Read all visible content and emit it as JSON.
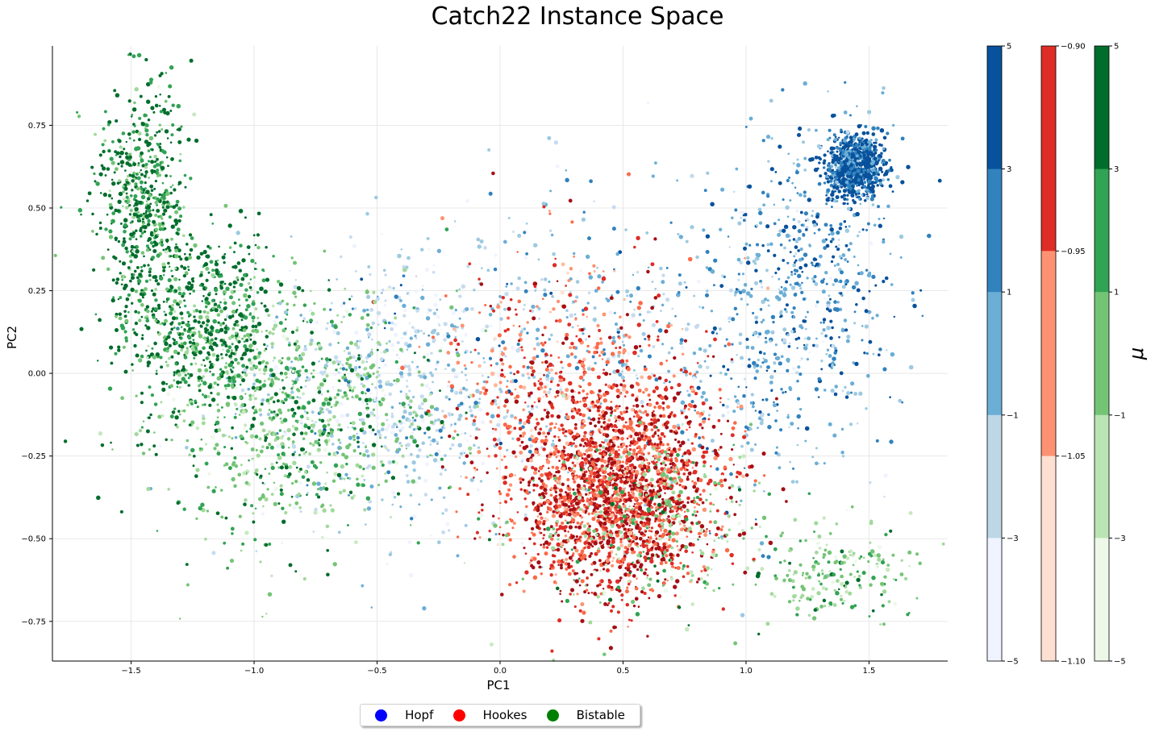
{
  "chart_data": {
    "type": "scatter",
    "title": "Catch22 Instance Space",
    "xlabel": "PC1",
    "ylabel": "PC2",
    "xlim": [
      -1.82,
      1.82
    ],
    "ylim": [
      -0.87,
      0.99
    ],
    "xticks": [
      -1.5,
      -1.0,
      -0.5,
      0.0,
      0.5,
      1.0,
      1.5
    ],
    "xtick_labels": [
      "−1.5",
      "−1.0",
      "−0.5",
      "0.0",
      "0.5",
      "1.0",
      "1.5"
    ],
    "yticks": [
      0.75,
      0.5,
      0.25,
      0.0,
      -0.25,
      -0.5,
      -0.75
    ],
    "ytick_labels": [
      "0.75",
      "0.50",
      "0.25",
      "0.00",
      "−0.25",
      "−0.50",
      "−0.75"
    ],
    "grid": true,
    "legend_position": "bottom-center",
    "series": [
      {
        "name": "Hopf",
        "legend_color": "#0000ff",
        "colormap": "Blues",
        "clusters": [
          {
            "center": [
              1.45,
              0.63
            ],
            "spread": [
              0.06,
              0.05
            ],
            "level": 0.9,
            "share": 0.3
          },
          {
            "center": [
              1.3,
              0.35
            ],
            "spread": [
              0.17,
              0.2
            ],
            "level": 0.7,
            "share": 0.14
          },
          {
            "center": [
              1.12,
              0.05
            ],
            "spread": [
              0.25,
              0.26
            ],
            "level": 0.6,
            "share": 0.12
          },
          {
            "center": [
              -0.45,
              -0.05
            ],
            "spread": [
              0.3,
              0.2
            ],
            "level": 0.3,
            "share": 0.24
          },
          {
            "center": [
              0.35,
              0.1
            ],
            "spread": [
              0.45,
              0.22
            ],
            "level": 0.5,
            "share": 0.2
          }
        ]
      },
      {
        "name": "Hookes",
        "legend_color": "#ff0000",
        "colormap": "Reds",
        "clusters": [
          {
            "center": [
              0.48,
              -0.35
            ],
            "spread": [
              0.2,
              0.16
            ],
            "level": 0.75,
            "share": 0.8
          },
          {
            "center": [
              0.3,
              -0.05
            ],
            "spread": [
              0.28,
              0.2
            ],
            "level": 0.6,
            "share": 0.2
          }
        ]
      },
      {
        "name": "Bistable",
        "legend_color": "#008000",
        "colormap": "Greens",
        "clusters": [
          {
            "center": [
              -1.45,
              0.5
            ],
            "spread": [
              0.09,
              0.2
            ],
            "level": 0.85,
            "share": 0.24
          },
          {
            "center": [
              -1.2,
              0.15
            ],
            "spread": [
              0.15,
              0.13
            ],
            "level": 0.85,
            "share": 0.22
          },
          {
            "center": [
              -0.85,
              -0.12
            ],
            "spread": [
              0.3,
              0.18
            ],
            "level": 0.6,
            "share": 0.34
          },
          {
            "center": [
              1.35,
              -0.6
            ],
            "spread": [
              0.2,
              0.08
            ],
            "level": 0.55,
            "share": 0.08
          },
          {
            "center": [
              0.6,
              -0.45
            ],
            "spread": [
              0.25,
              0.15
            ],
            "level": 0.55,
            "share": 0.12
          }
        ]
      }
    ],
    "colorbars": [
      {
        "colormap": "Blues",
        "tick_labels": [
          "5",
          "3",
          "1",
          "−1",
          "−3",
          "−5"
        ],
        "colors": [
          "#08519c",
          "#3182bd",
          "#6baed6",
          "#bdd7e7",
          "#eff3ff"
        ]
      },
      {
        "colormap": "Reds",
        "tick_labels": [
          "−0.90",
          "−0.95",
          "−1.05",
          "−1.10"
        ],
        "colors": [
          "#de2d26",
          "#fc9272",
          "#fee0d2"
        ]
      },
      {
        "colormap": "Greens",
        "tick_labels": [
          "5",
          "3",
          "1",
          "−1",
          "−3",
          "−5"
        ],
        "colors": [
          "#006d2c",
          "#31a354",
          "#74c476",
          "#bae4b3",
          "#edf8e9"
        ],
        "label": "μ"
      }
    ]
  },
  "legend": {
    "items": [
      {
        "label": "Hopf",
        "color": "#0000ff"
      },
      {
        "label": "Hookes",
        "color": "#ff0000"
      },
      {
        "label": "Bistable",
        "color": "#008000"
      }
    ]
  }
}
